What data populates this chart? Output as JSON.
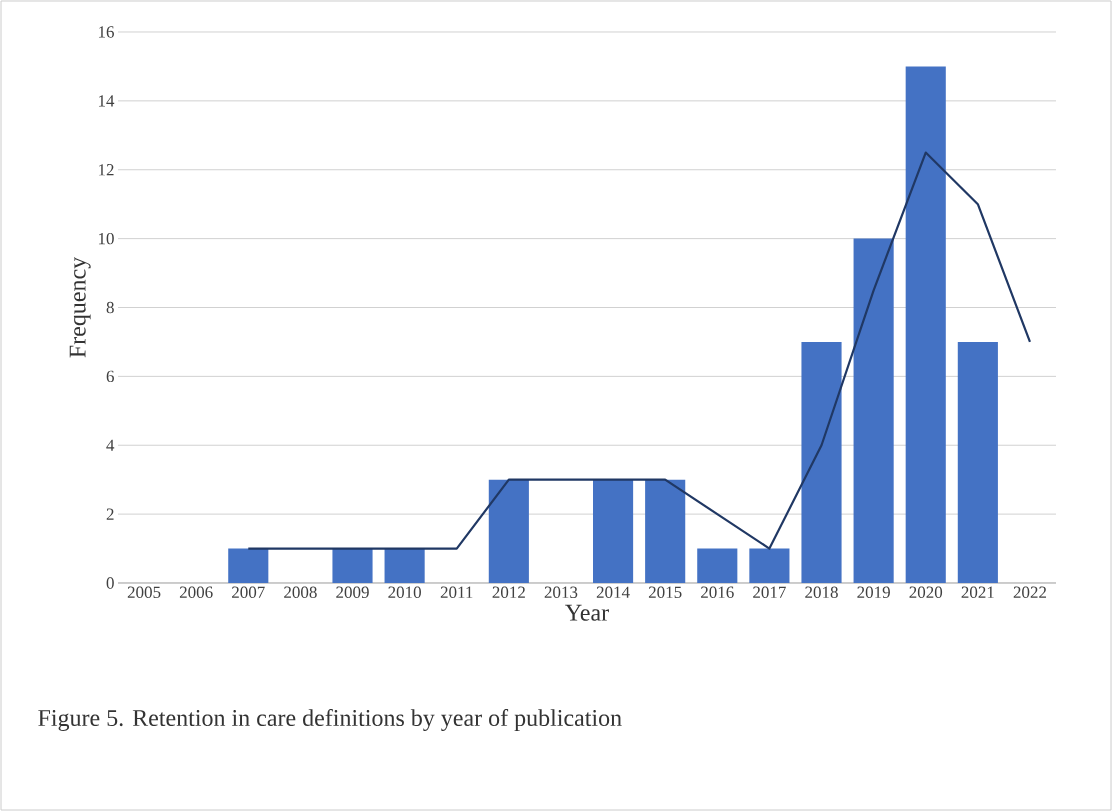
{
  "chart_data": {
    "type": "bar",
    "xlabel": "Year",
    "ylabel": "Frequency",
    "categories": [
      "2005",
      "2006",
      "2007",
      "2008",
      "2009",
      "2010",
      "2011",
      "2012",
      "2013",
      "2014",
      "2015",
      "2016",
      "2017",
      "2018",
      "2019",
      "2020",
      "2021",
      "2022"
    ],
    "series": [
      {
        "color": "#4472c4",
        "values": [
          0,
          0,
          1,
          0,
          1,
          1,
          0,
          3,
          0,
          3,
          3,
          1,
          1,
          7,
          10,
          15,
          7,
          0
        ]
      },
      {
        "type": "line",
        "color": "#203864",
        "values": [
          null,
          null,
          1,
          1,
          1,
          1,
          1,
          3,
          3,
          3,
          3,
          2,
          1,
          4,
          8.5,
          12.5,
          11,
          7
        ]
      }
    ],
    "ylim": [
      0,
      16
    ],
    "yticks": [
      0,
      2,
      4,
      6,
      8,
      10,
      12,
      14,
      16
    ],
    "grid": "y",
    "annotations": [
      "Figure 5. Retention in care definitions by year of publication"
    ]
  }
}
